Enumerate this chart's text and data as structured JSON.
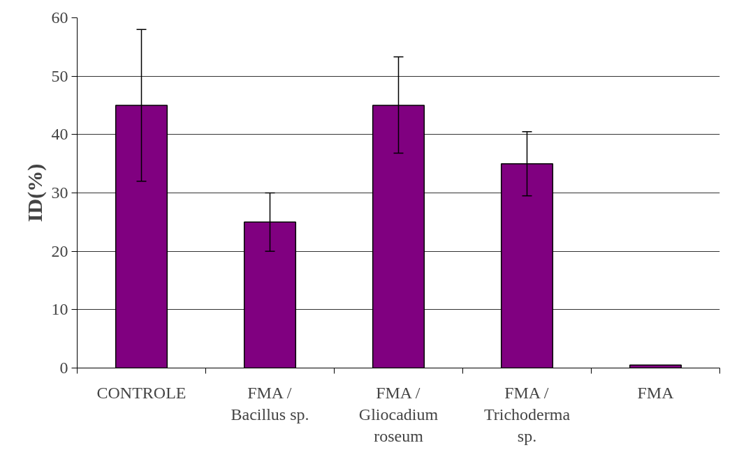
{
  "chart_data": {
    "type": "bar",
    "ylabel": "ID(%)",
    "categories": [
      "CONTROLE",
      "FMA / Bacillus sp.",
      "FMA / Gliocadium roseum",
      "FMA / Trichoderma sp.",
      "FMA"
    ],
    "values": [
      45,
      25,
      45,
      35,
      0.5
    ],
    "errors": [
      [
        32,
        58
      ],
      [
        20,
        30
      ],
      [
        36.8,
        53.3
      ],
      [
        29.5,
        40.5
      ],
      null
    ],
    "color": "#800080",
    "ylim": [
      0,
      60
    ],
    "yticks": [
      0,
      10,
      20,
      30,
      40,
      50,
      60
    ],
    "grid": "y"
  }
}
